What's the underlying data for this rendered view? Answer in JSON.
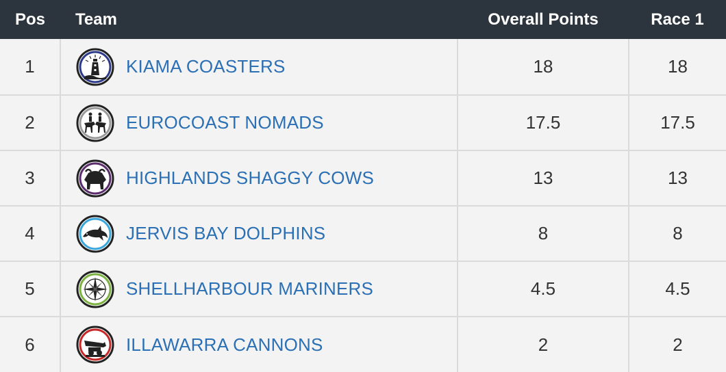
{
  "header": {
    "pos": "Pos",
    "team": "Team",
    "overall": "Overall Points",
    "race1": "Race 1"
  },
  "colors": {
    "header_bg": "#2c343e",
    "row_bg": "#f3f3f3",
    "link": "#2b6fb4"
  },
  "rows": [
    {
      "pos": "1",
      "team": "KIAMA COASTERS",
      "logo": "lighthouse-icon",
      "ring": "#2d3b8a",
      "overall": "18",
      "race1": "18"
    },
    {
      "pos": "2",
      "team": "EUROCOAST NOMADS",
      "logo": "horse-riders-icon",
      "ring": "#9a9a9a",
      "overall": "17.5",
      "race1": "17.5"
    },
    {
      "pos": "3",
      "team": "HIGHLANDS SHAGGY COWS",
      "logo": "highland-cow-icon",
      "ring": "#5b2d6e",
      "overall": "13",
      "race1": "13"
    },
    {
      "pos": "4",
      "team": "JERVIS BAY DOLPHINS",
      "logo": "dolphin-icon",
      "ring": "#3aa6dc",
      "overall": "8",
      "race1": "8"
    },
    {
      "pos": "5",
      "team": "SHELLHARBOUR MARINERS",
      "logo": "compass-rose-icon",
      "ring": "#7cb342",
      "overall": "4.5",
      "race1": "4.5"
    },
    {
      "pos": "6",
      "team": "ILLAWARRA CANNONS",
      "logo": "cannon-icon",
      "ring": "#c62828",
      "overall": "2",
      "race1": "2"
    }
  ]
}
